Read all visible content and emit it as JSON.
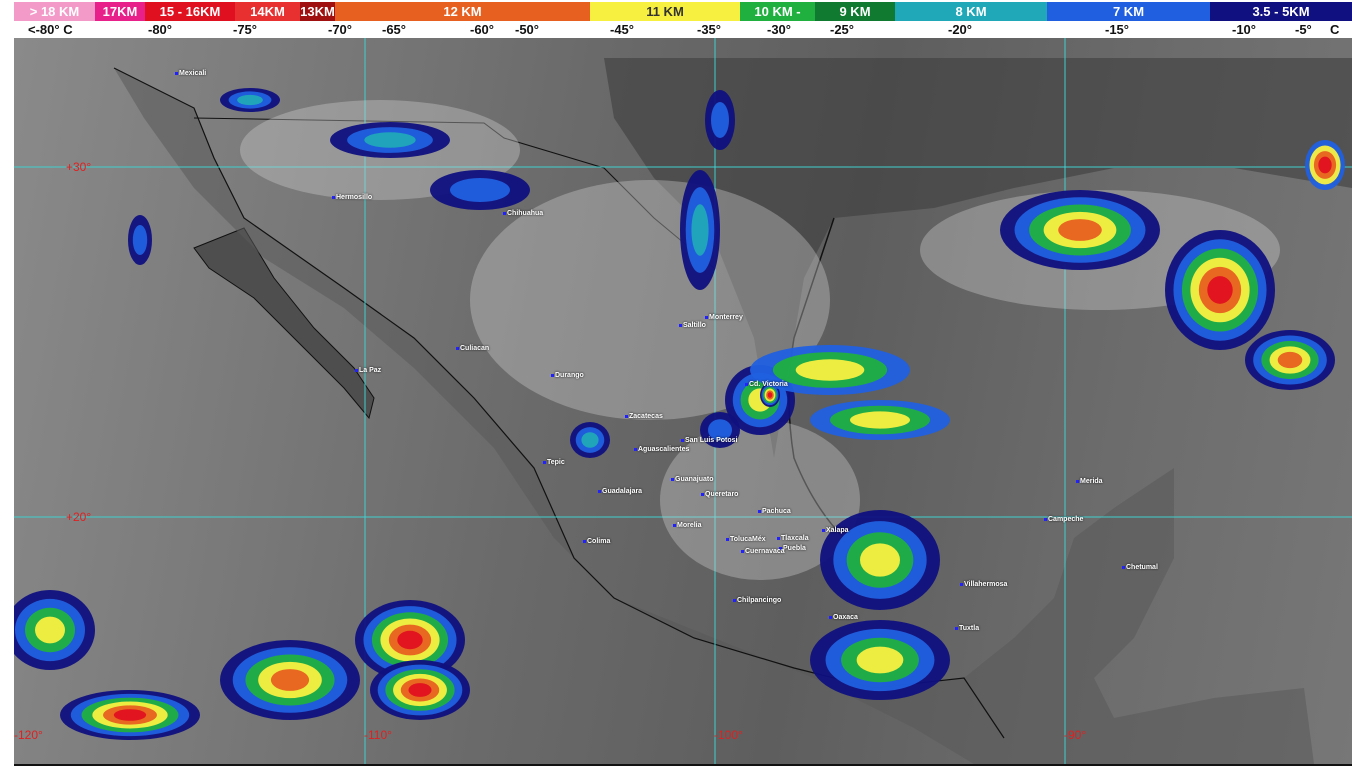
{
  "legend": {
    "segments": [
      {
        "label": "> 18 KM",
        "color": "#f49ac8"
      },
      {
        "label": "17KM",
        "color": "#e8208a"
      },
      {
        "label": "15 - 16KM",
        "color": "#e01020"
      },
      {
        "label": "14KM",
        "color": "#e83030"
      },
      {
        "label": "13KM",
        "color": "#a01010"
      },
      {
        "label": "12 KM",
        "color": "#e86020"
      },
      {
        "label": "11 KM",
        "color": "#f8f040"
      },
      {
        "label": "10 KM -",
        "color": "#20b040"
      },
      {
        "label": "9 KM",
        "color": "#107a30"
      },
      {
        "label": "8 KM",
        "color": "#20a8b8"
      },
      {
        "label": "7 KM",
        "color": "#2060e0"
      },
      {
        "label": "3.5 - 5KM",
        "color": "#101080"
      }
    ],
    "temperatures": [
      "<-80° C",
      "-80°",
      "-75°",
      "-70°",
      "-65°",
      "-60°",
      "-50°",
      "-45°",
      "-35°",
      "-30°",
      "-25°",
      "-20°",
      "-15°",
      "-10°",
      "-5°",
      "C"
    ]
  },
  "grid": {
    "latitudes": [
      "+30°",
      "+20°"
    ],
    "longitudes": [
      "-120°",
      "-110°",
      "-100°",
      "-90°"
    ],
    "color": "#40d0d0",
    "label_color": "#e02020"
  },
  "cities": [
    "Mexicali",
    "Hermosillo",
    "Chihuahua",
    "Culiacan",
    "La Paz",
    "Durango",
    "Saltillo",
    "Monterrey",
    "Cd. Victoria",
    "Zacatecas",
    "San Luis Potosi",
    "Aguascalientes",
    "Tepic",
    "Guanajuato",
    "Guadalajara",
    "Queretaro",
    "Pachuca",
    "Morelia",
    "Colima",
    "TolucaMéx",
    "Tlaxcala",
    "Puebla",
    "Xalapa",
    "Cuernavaca",
    "Chilpancingo",
    "Oaxaca",
    "Villahermosa",
    "Tuxtla",
    "Merida",
    "Campeche",
    "Chetumal"
  ]
}
